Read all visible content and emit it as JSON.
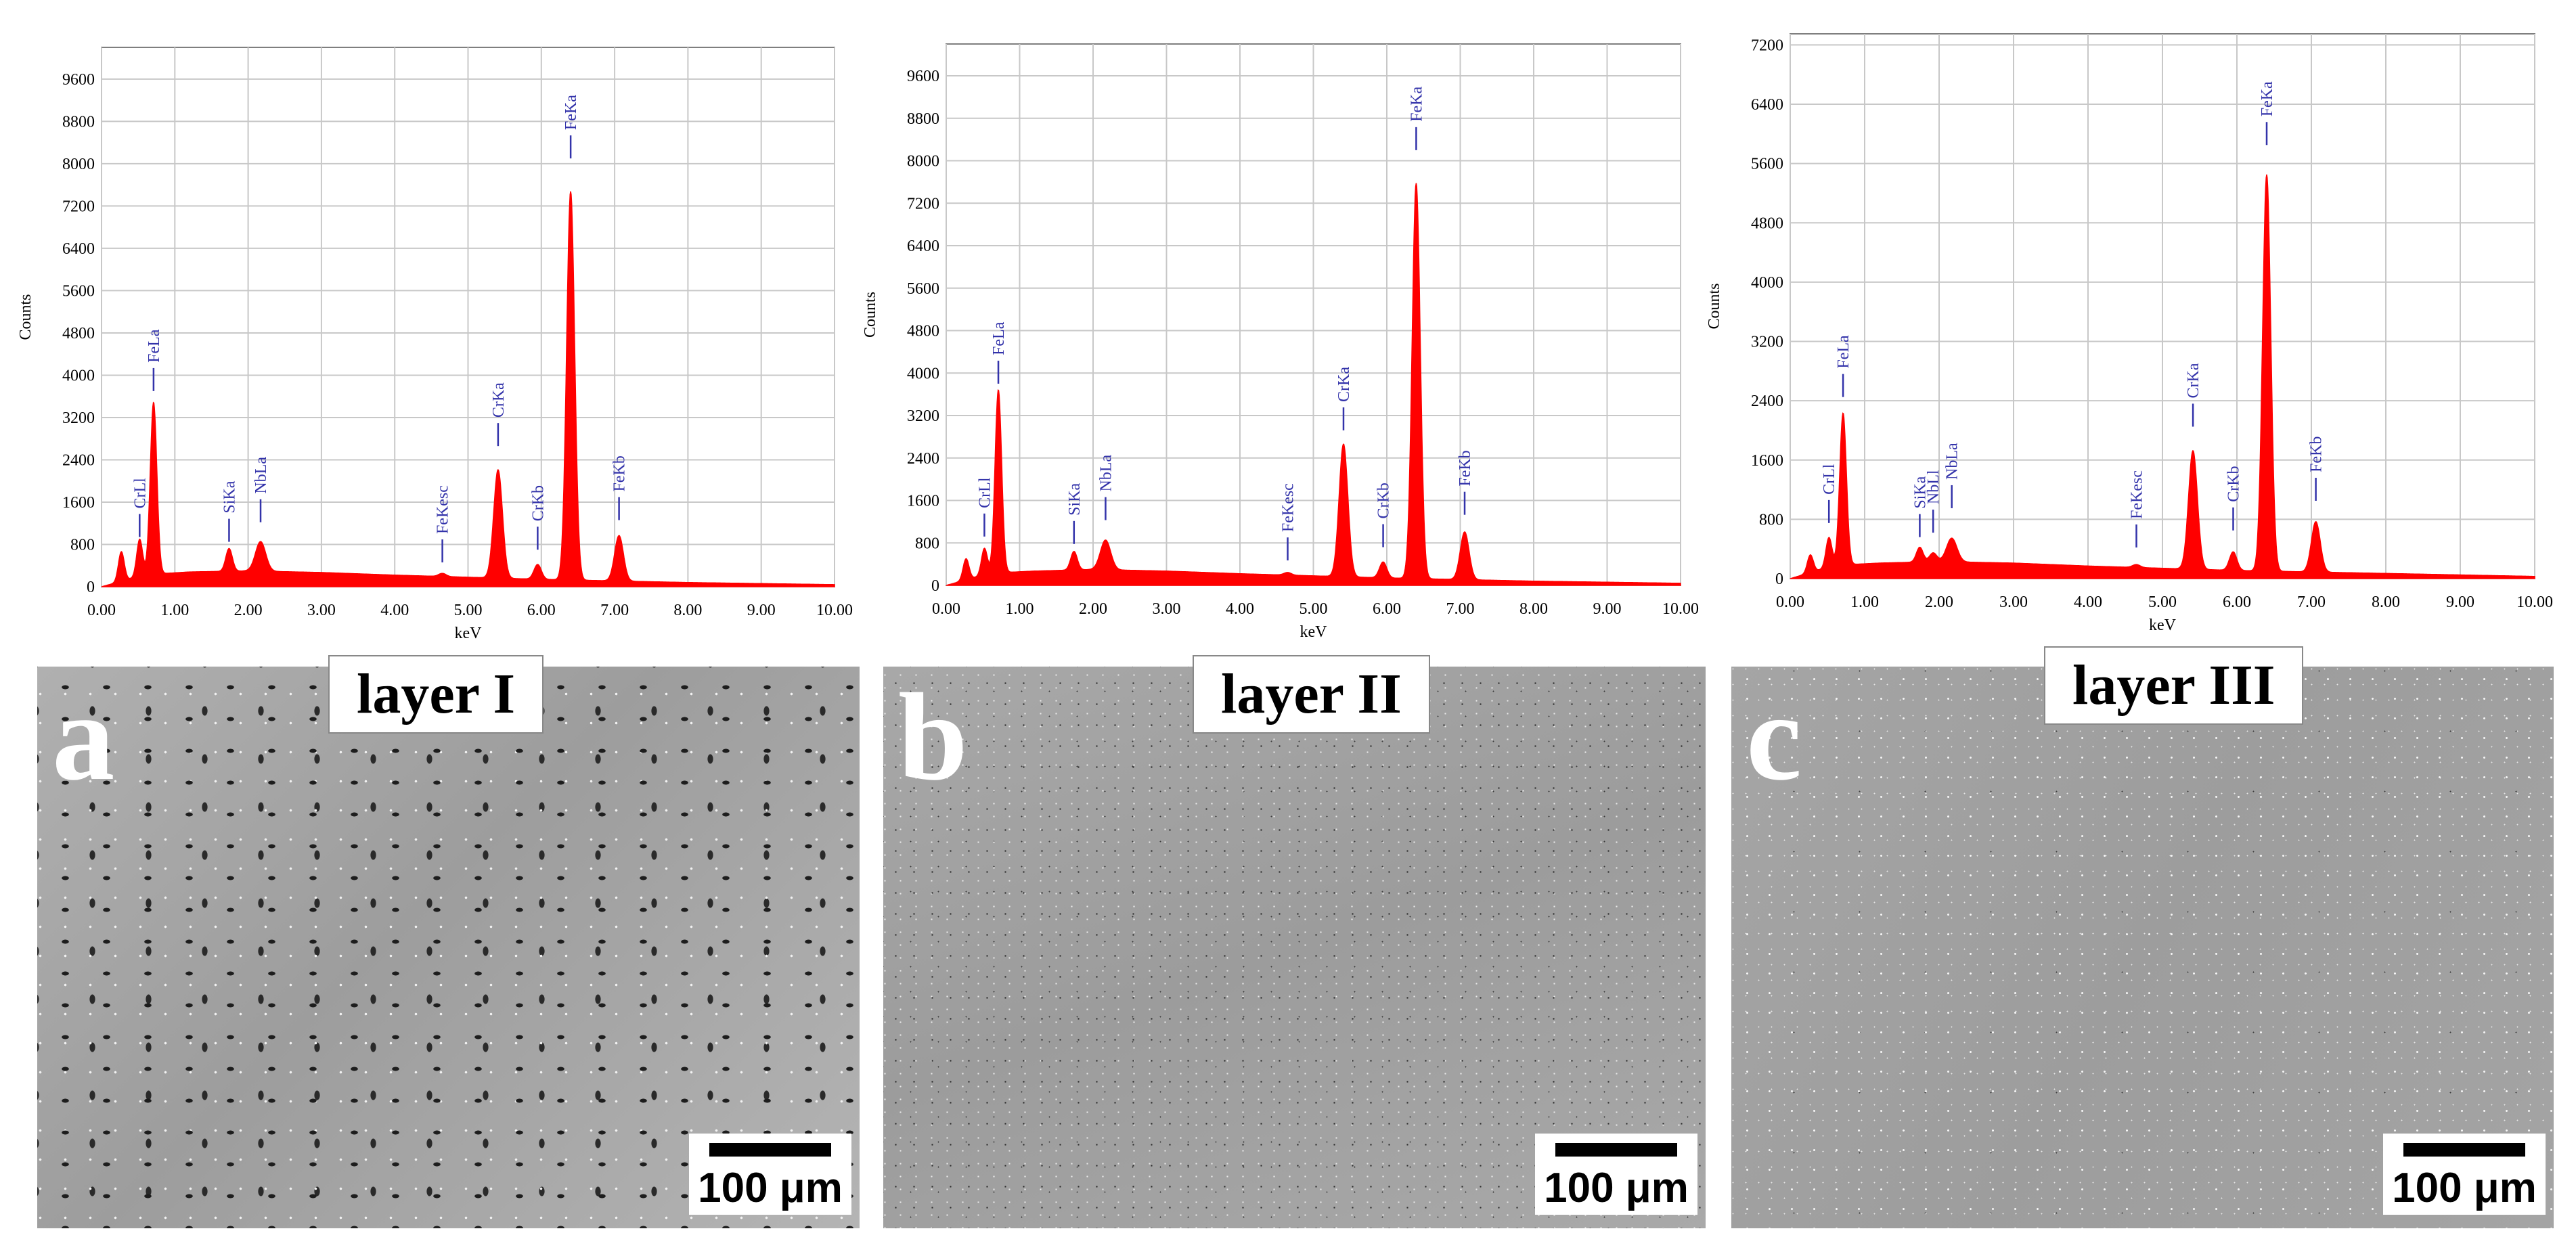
{
  "chart_data": [
    {
      "type": "line",
      "ylabel": "Counts",
      "xlabel": "keV",
      "x_ticks": [
        "0.00",
        "1.00",
        "2.00",
        "3.00",
        "4.00",
        "5.00",
        "6.00",
        "7.00",
        "8.00",
        "9.00",
        "10.00"
      ],
      "y_ticks": [
        "0",
        "800",
        "1600",
        "2400",
        "3200",
        "4000",
        "4800",
        "5600",
        "6400",
        "7200",
        "8000",
        "8800",
        "9600"
      ],
      "xlim": [
        0,
        10
      ],
      "ylim": [
        0,
        10200
      ],
      "grid": true,
      "fill_color": "#ff0000",
      "label_color": "#3333aa",
      "peaks": [
        {
          "x": 0.27,
          "y": 560,
          "w": 0.04
        },
        {
          "x": 0.52,
          "y": 700,
          "w": 0.04
        },
        {
          "x": 0.71,
          "y": 3250,
          "w": 0.045
        },
        {
          "x": 1.74,
          "y": 430,
          "w": 0.045
        },
        {
          "x": 2.17,
          "y": 560,
          "w": 0.07
        },
        {
          "x": 4.65,
          "y": 60,
          "w": 0.05
        },
        {
          "x": 5.41,
          "y": 2050,
          "w": 0.06
        },
        {
          "x": 5.95,
          "y": 280,
          "w": 0.05
        },
        {
          "x": 6.4,
          "y": 7350,
          "w": 0.055
        },
        {
          "x": 7.06,
          "y": 860,
          "w": 0.06
        }
      ],
      "baseline": [
        [
          0.0,
          0
        ],
        [
          0.6,
          230
        ],
        [
          1.2,
          280
        ],
        [
          2.0,
          300
        ],
        [
          3.0,
          270
        ],
        [
          4.0,
          220
        ],
        [
          5.0,
          180
        ],
        [
          6.0,
          140
        ],
        [
          7.0,
          110
        ],
        [
          8.0,
          80
        ],
        [
          9.0,
          60
        ],
        [
          10.0,
          40
        ]
      ],
      "markers": [
        {
          "text": "CrLl",
          "x": 0.52,
          "y": 940
        },
        {
          "text": "FeLa",
          "x": 0.71,
          "y": 3700
        },
        {
          "text": "SiKa",
          "x": 1.74,
          "y": 850
        },
        {
          "text": "NbLa",
          "x": 2.17,
          "y": 1220
        },
        {
          "text": "FeKesc",
          "x": 4.65,
          "y": 460
        },
        {
          "text": "CrKa",
          "x": 5.41,
          "y": 2660
        },
        {
          "text": "CrKb",
          "x": 5.95,
          "y": 700
        },
        {
          "text": "FeKa",
          "x": 6.4,
          "y": 8100
        },
        {
          "text": "FeKb",
          "x": 7.06,
          "y": 1260
        }
      ]
    },
    {
      "type": "line",
      "ylabel": "Counts",
      "xlabel": "keV",
      "x_ticks": [
        "0.00",
        "1.00",
        "2.00",
        "3.00",
        "4.00",
        "5.00",
        "6.00",
        "7.00",
        "8.00",
        "9.00",
        "10.00"
      ],
      "y_ticks": [
        "0",
        "800",
        "1600",
        "2400",
        "3200",
        "4000",
        "4800",
        "5600",
        "6400",
        "7200",
        "8000",
        "8800",
        "9600"
      ],
      "xlim": [
        0,
        10
      ],
      "ylim": [
        0,
        10200
      ],
      "grid": true,
      "fill_color": "#ff0000",
      "label_color": "#3333aa",
      "peaks": [
        {
          "x": 0.27,
          "y": 400,
          "w": 0.04
        },
        {
          "x": 0.52,
          "y": 500,
          "w": 0.04
        },
        {
          "x": 0.71,
          "y": 3450,
          "w": 0.045
        },
        {
          "x": 1.74,
          "y": 350,
          "w": 0.045
        },
        {
          "x": 2.17,
          "y": 560,
          "w": 0.07
        },
        {
          "x": 4.65,
          "y": 50,
          "w": 0.05
        },
        {
          "x": 5.41,
          "y": 2500,
          "w": 0.06
        },
        {
          "x": 5.95,
          "y": 300,
          "w": 0.05
        },
        {
          "x": 6.4,
          "y": 7450,
          "w": 0.055
        },
        {
          "x": 7.06,
          "y": 900,
          "w": 0.06
        }
      ],
      "baseline": [
        [
          0.0,
          0
        ],
        [
          0.6,
          230
        ],
        [
          1.2,
          270
        ],
        [
          2.0,
          300
        ],
        [
          3.0,
          270
        ],
        [
          4.0,
          220
        ],
        [
          5.0,
          180
        ],
        [
          6.0,
          140
        ],
        [
          7.0,
          110
        ],
        [
          8.0,
          80
        ],
        [
          9.0,
          60
        ],
        [
          10.0,
          40
        ]
      ],
      "markers": [
        {
          "text": "CrLl",
          "x": 0.52,
          "y": 920
        },
        {
          "text": "FeLa",
          "x": 0.71,
          "y": 3800
        },
        {
          "text": "SiKa",
          "x": 1.74,
          "y": 780
        },
        {
          "text": "NbLa",
          "x": 2.17,
          "y": 1230
        },
        {
          "text": "FeKesc",
          "x": 4.65,
          "y": 470
        },
        {
          "text": "CrKa",
          "x": 5.41,
          "y": 2920
        },
        {
          "text": "CrKb",
          "x": 5.95,
          "y": 720
        },
        {
          "text": "FeKa",
          "x": 6.4,
          "y": 8200
        },
        {
          "text": "FeKb",
          "x": 7.06,
          "y": 1330
        }
      ]
    },
    {
      "type": "line",
      "ylabel": "Counts",
      "xlabel": "keV",
      "x_ticks": [
        "0.00",
        "1.00",
        "2.00",
        "3.00",
        "4.00",
        "5.00",
        "6.00",
        "7.00",
        "8.00",
        "9.00",
        "10.00"
      ],
      "y_ticks": [
        "0",
        "800",
        "1600",
        "2400",
        "3200",
        "4000",
        "4800",
        "5600",
        "6400",
        "7200"
      ],
      "xlim": [
        0,
        10
      ],
      "ylim": [
        0,
        7350
      ],
      "grid": true,
      "fill_color": "#ff0000",
      "label_color": "#3333aa",
      "peaks": [
        {
          "x": 0.27,
          "y": 240,
          "w": 0.04
        },
        {
          "x": 0.52,
          "y": 400,
          "w": 0.04
        },
        {
          "x": 0.71,
          "y": 2050,
          "w": 0.045
        },
        {
          "x": 1.74,
          "y": 200,
          "w": 0.045
        },
        {
          "x": 1.92,
          "y": 120,
          "w": 0.05
        },
        {
          "x": 2.17,
          "y": 320,
          "w": 0.07
        },
        {
          "x": 4.65,
          "y": 40,
          "w": 0.05
        },
        {
          "x": 5.41,
          "y": 1600,
          "w": 0.06
        },
        {
          "x": 5.95,
          "y": 250,
          "w": 0.05
        },
        {
          "x": 6.4,
          "y": 5350,
          "w": 0.055
        },
        {
          "x": 7.06,
          "y": 680,
          "w": 0.06
        }
      ],
      "baseline": [
        [
          0.0,
          0
        ],
        [
          0.6,
          180
        ],
        [
          1.2,
          210
        ],
        [
          2.0,
          230
        ],
        [
          3.0,
          210
        ],
        [
          4.0,
          170
        ],
        [
          5.0,
          140
        ],
        [
          6.0,
          110
        ],
        [
          7.0,
          90
        ],
        [
          8.0,
          70
        ],
        [
          9.0,
          50
        ],
        [
          10.0,
          30
        ]
      ],
      "markers": [
        {
          "text": "CrLl",
          "x": 0.52,
          "y": 750
        },
        {
          "text": "FeLa",
          "x": 0.71,
          "y": 2450
        },
        {
          "text": "SiKa",
          "x": 1.74,
          "y": 560
        },
        {
          "text": "NbLl",
          "x": 1.92,
          "y": 620
        },
        {
          "text": "NbLa",
          "x": 2.17,
          "y": 950
        },
        {
          "text": "FeKesc",
          "x": 4.65,
          "y": 420
        },
        {
          "text": "CrKa",
          "x": 5.41,
          "y": 2050
        },
        {
          "text": "CrKb",
          "x": 5.95,
          "y": 650
        },
        {
          "text": "FeKa",
          "x": 6.4,
          "y": 5850
        },
        {
          "text": "FeKb",
          "x": 7.06,
          "y": 1050
        }
      ]
    }
  ],
  "panels": [
    {
      "letter": "a",
      "layer": "layer I",
      "scale": "100 μm"
    },
    {
      "letter": "b",
      "layer": "layer II",
      "scale": "100 μm"
    },
    {
      "letter": "c",
      "layer": "layer III",
      "scale": "100 μm"
    }
  ]
}
